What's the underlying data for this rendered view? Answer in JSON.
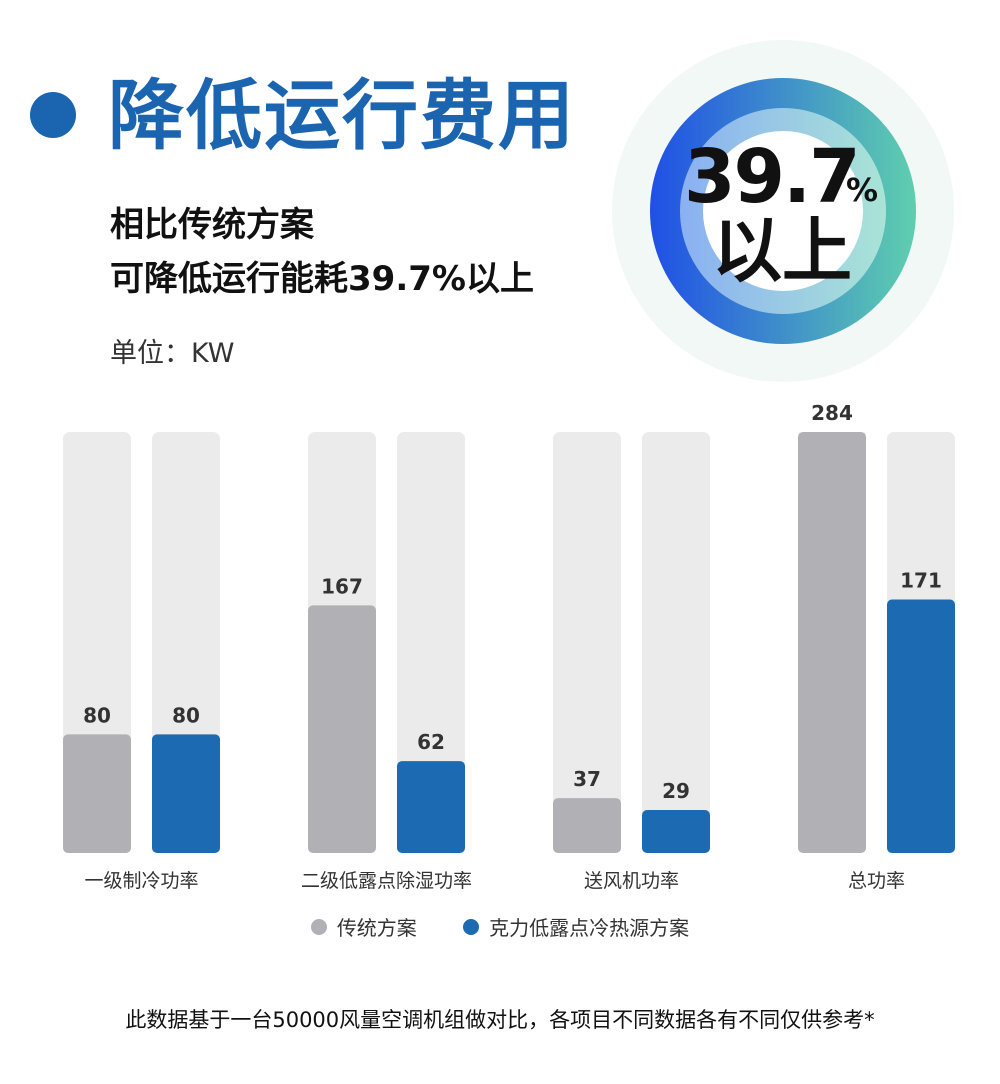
{
  "header": {
    "title": "降低运行费用",
    "subtitle_line1": "相比传统方案",
    "subtitle_line2": "可降低运行能耗39.7%以上",
    "unit": "单位：KW"
  },
  "badge": {
    "value": "39.7",
    "percent": "%",
    "suffix": "以上"
  },
  "colors": {
    "accent": "#1b64b0",
    "traditional": "#b1b1b5",
    "new_scheme": "#1c6ab2",
    "track": "#ebebeb"
  },
  "chart_data": {
    "type": "bar",
    "categories": [
      "一级制冷功率",
      "二级低露点除湿功率",
      "送风机功率",
      "总功率"
    ],
    "series": [
      {
        "name": "传统方案",
        "values": [
          80,
          167,
          37,
          284
        ]
      },
      {
        "name": "克力低露点冷热源方案",
        "values": [
          80,
          62,
          29,
          171
        ]
      }
    ],
    "ylabel": "单位：KW",
    "ylim": [
      0,
      300
    ],
    "grid": false,
    "legend": "bottom"
  },
  "footnote": "此数据基于一台50000风量空调机组做对比，各项目不同数据各有不同仅供参考*"
}
